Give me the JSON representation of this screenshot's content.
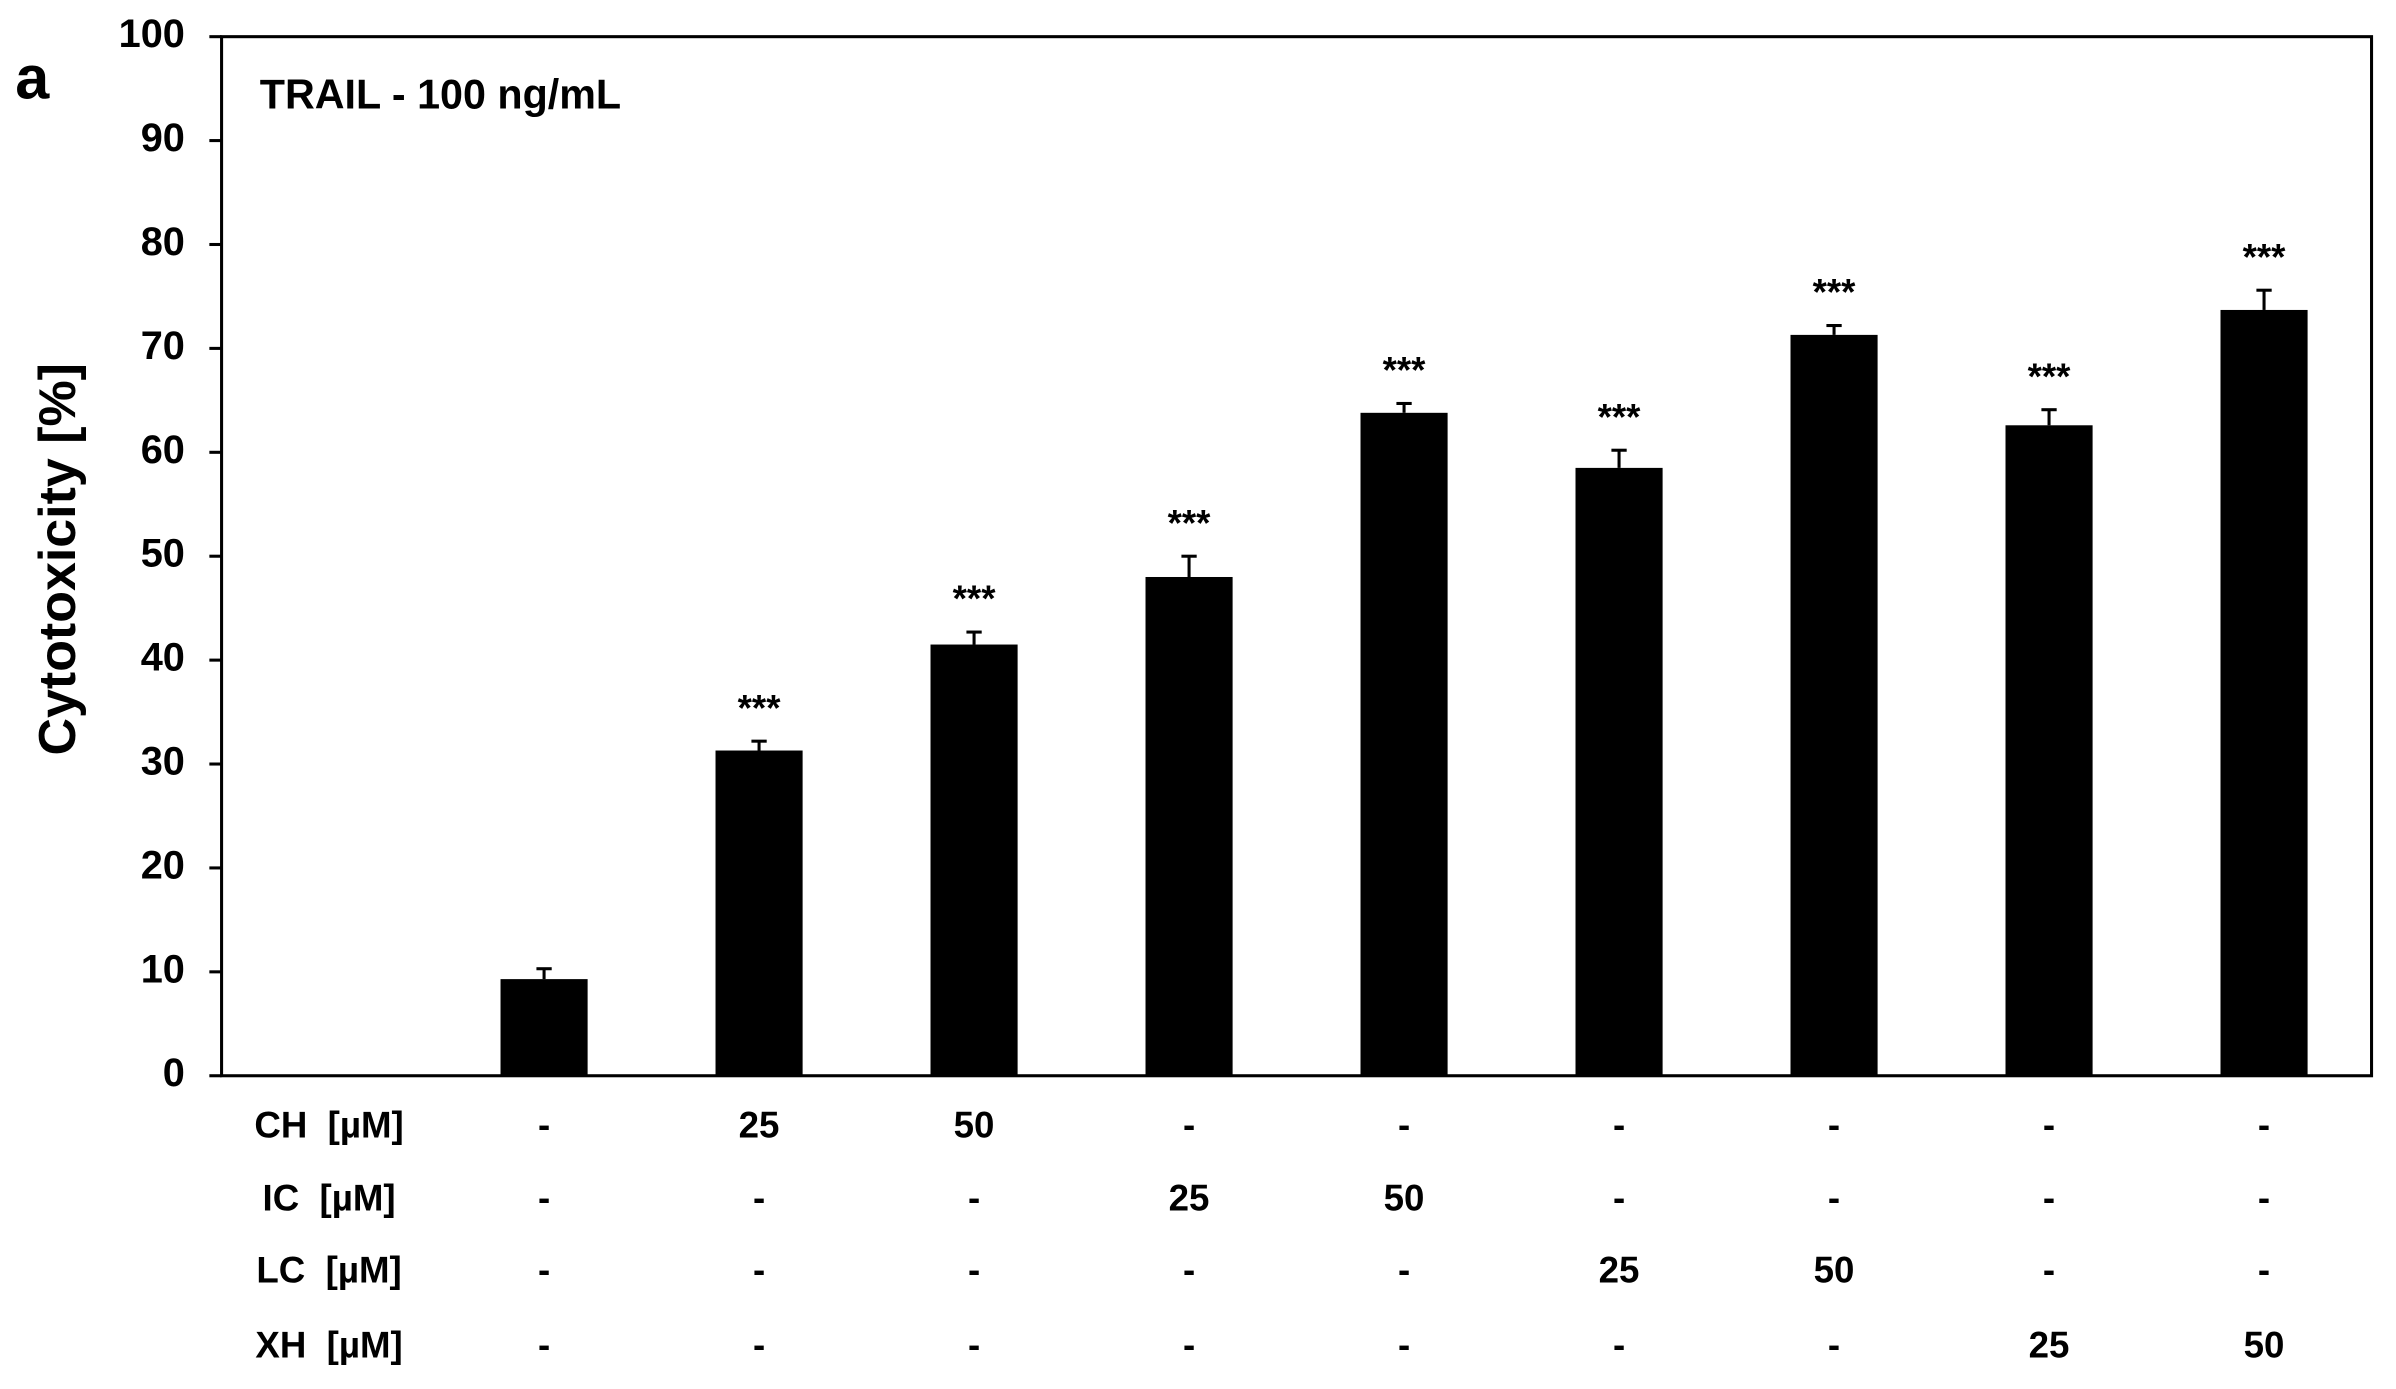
{
  "chart_data": {
    "type": "bar",
    "panel_label": "a",
    "title": "TRAIL - 100 ng/mL",
    "y_label": "Cytotoxicity [%]",
    "categories": [
      null,
      null,
      null,
      null,
      null,
      null,
      null,
      null,
      null,
      null
    ],
    "values": [
      null,
      9.3,
      31.3,
      41.5,
      48.0,
      63.8,
      58.5,
      71.3,
      62.6,
      73.7
    ],
    "errors": [
      null,
      1.0,
      0.9,
      1.2,
      2.0,
      0.9,
      1.7,
      0.9,
      1.5,
      1.9
    ],
    "annotations": [
      null,
      null,
      "***",
      "***",
      "***",
      "***",
      "***",
      "***",
      "***",
      "***"
    ],
    "color": "#000000",
    "ylim": [
      0,
      100
    ],
    "yticks": [
      0,
      10,
      20,
      30,
      40,
      50,
      60,
      70,
      80,
      90,
      100
    ],
    "treatments": [
      {
        "label": "CH  [µM]",
        "values": [
          null,
          "-",
          "25",
          "50",
          "-",
          "-",
          "-",
          "-",
          "-",
          "-"
        ]
      },
      {
        "label": "IC  [µM]",
        "values": [
          null,
          "-",
          "-",
          "-",
          "25",
          "50",
          "-",
          "-",
          "-",
          "-"
        ]
      },
      {
        "label": "LC  [µM]",
        "values": [
          null,
          "-",
          "-",
          "-",
          "-",
          "-",
          "25",
          "50",
          "-",
          "-"
        ]
      },
      {
        "label": "XH  [µM]",
        "values": [
          null,
          "-",
          "-",
          "-",
          "-",
          "-",
          "-",
          "-",
          "25",
          "50"
        ]
      }
    ]
  }
}
